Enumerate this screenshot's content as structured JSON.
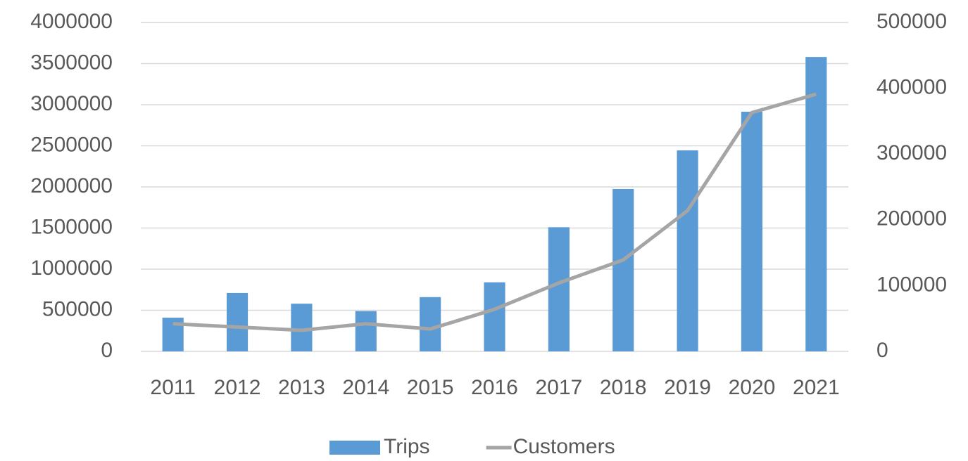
{
  "chart_data": {
    "type": "bar",
    "categories": [
      "2011",
      "2012",
      "2013",
      "2014",
      "2015",
      "2016",
      "2017",
      "2018",
      "2019",
      "2020",
      "2021"
    ],
    "series": [
      {
        "name": "Trips",
        "type": "bar",
        "color": "#5b9bd5",
        "values": [
          410000,
          710000,
          580000,
          490000,
          660000,
          840000,
          1510000,
          1975000,
          2445000,
          2915000,
          3580000
        ]
      },
      {
        "name": "Customers",
        "type": "line",
        "axis": "y2",
        "color": "#a5a5a5",
        "values": [
          42000,
          37000,
          32000,
          42000,
          34000,
          64000,
          104000,
          139000,
          214000,
          363000,
          391000
        ]
      }
    ],
    "ylim": [
      0,
      4000000
    ],
    "yticks": [
      0,
      500000,
      1000000,
      1500000,
      2000000,
      2500000,
      3000000,
      3500000,
      4000000
    ],
    "y2lim": [
      0,
      500000
    ],
    "y2ticks": [
      0,
      100000,
      200000,
      300000,
      400000,
      500000
    ],
    "grid": true,
    "legend": "bottom"
  }
}
